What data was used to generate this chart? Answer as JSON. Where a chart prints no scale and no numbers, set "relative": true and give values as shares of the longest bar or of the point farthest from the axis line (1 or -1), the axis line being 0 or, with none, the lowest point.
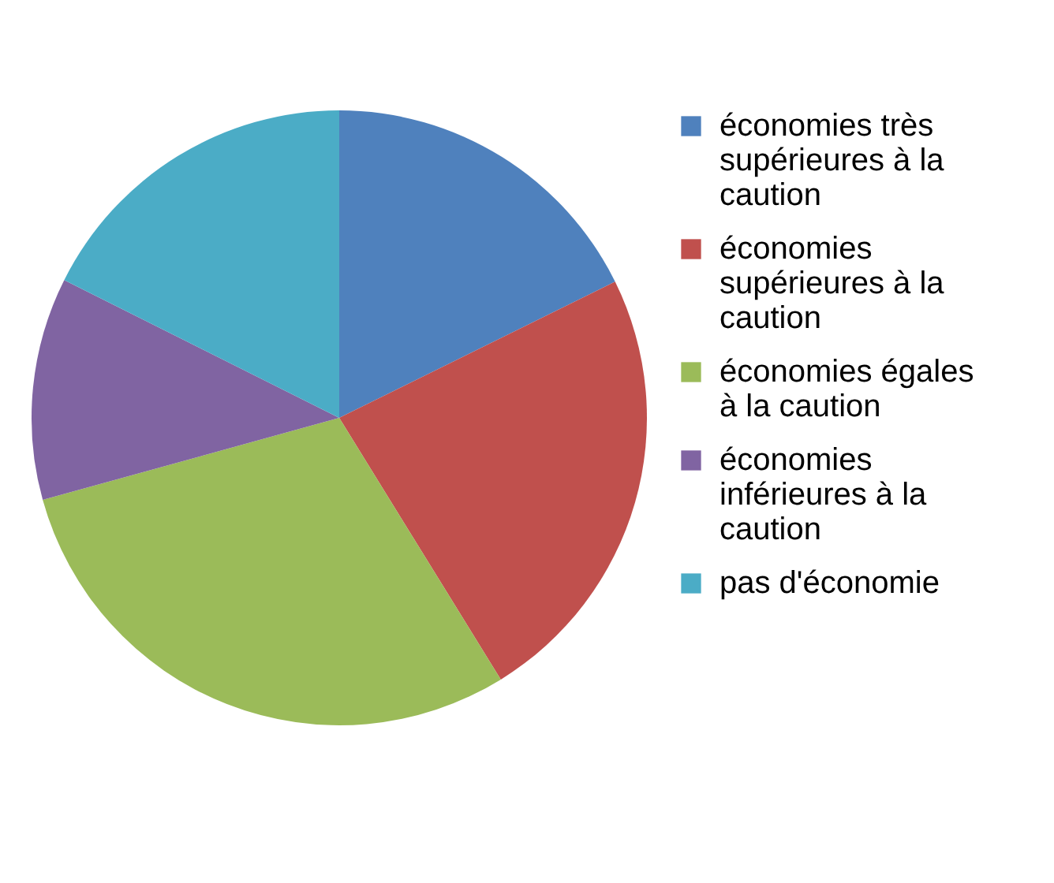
{
  "chart_data": {
    "type": "pie",
    "relative": true,
    "categories": [
      "économies très supérieures à la caution",
      "économies supérieures à la caution",
      "économies égales à la caution",
      "économies inférieures à la caution",
      "pas d'économie"
    ],
    "values": [
      17.7,
      23.5,
      29.5,
      11.7,
      17.6
    ],
    "colors": [
      "#4f81bd",
      "#c0504d",
      "#9bbb59",
      "#8064a2",
      "#4bacc6"
    ],
    "legend": "right"
  }
}
